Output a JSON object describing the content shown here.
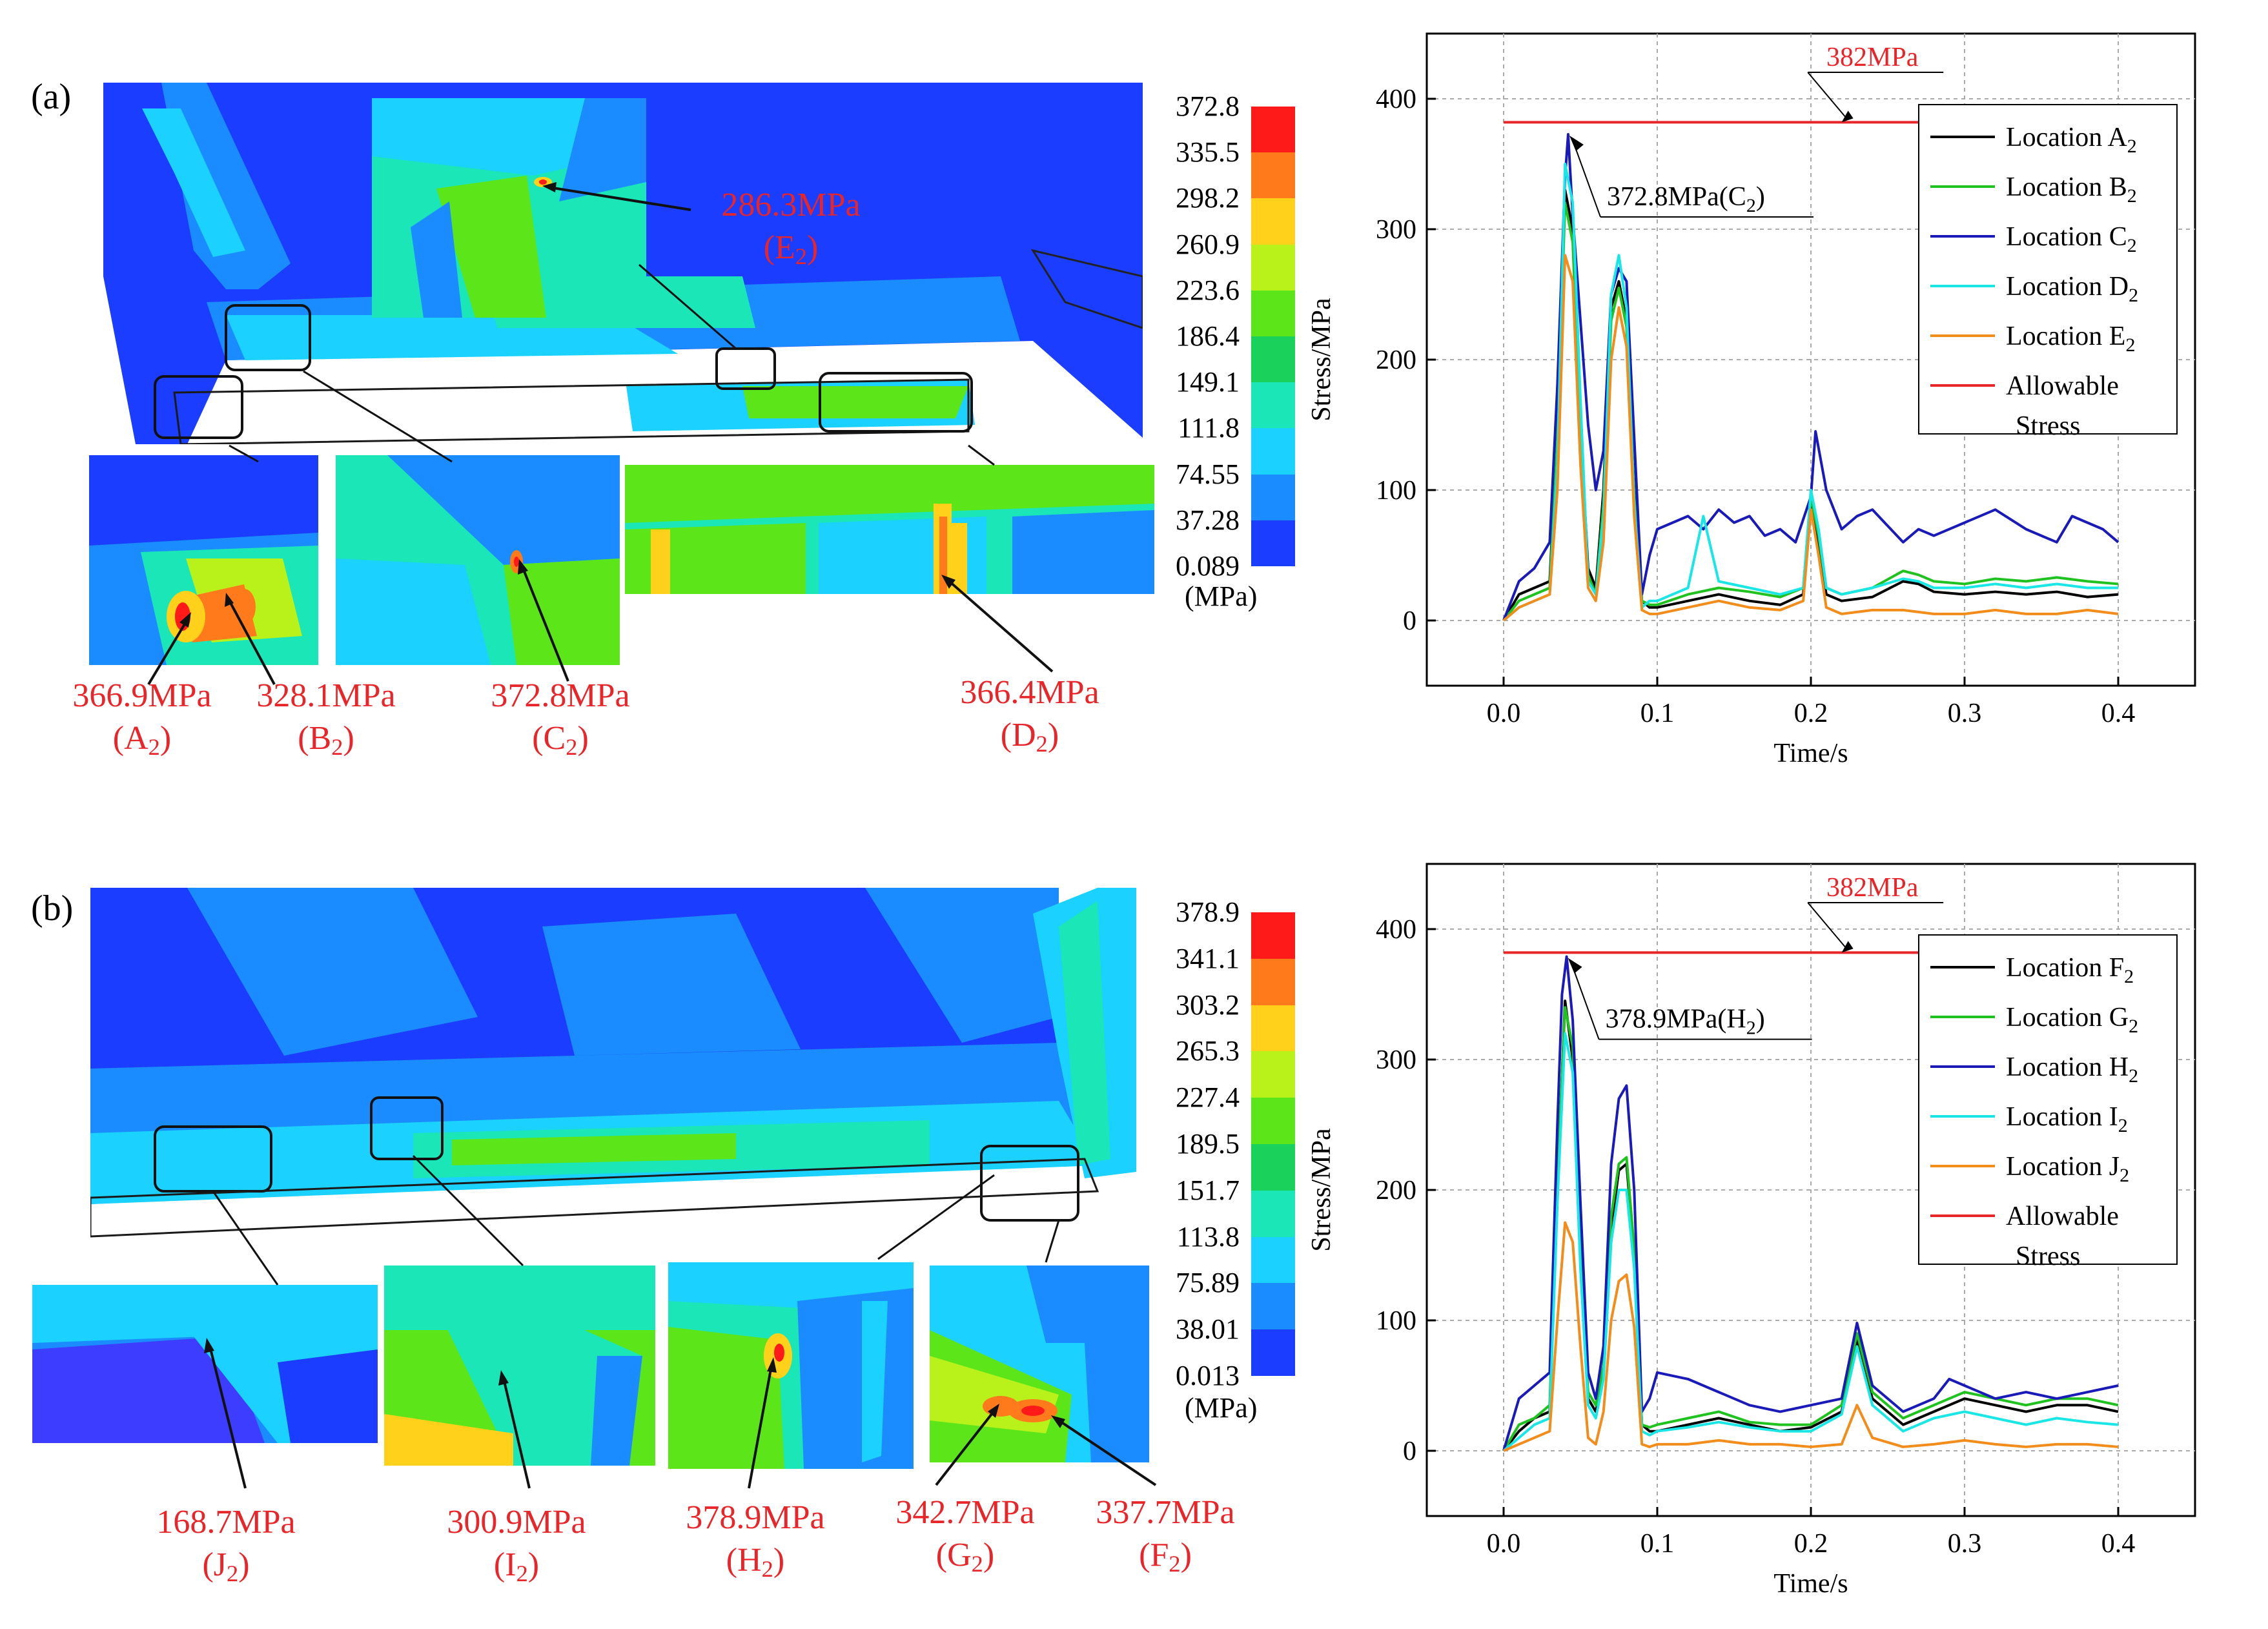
{
  "panels": [
    {
      "id": "a",
      "label": "(a)",
      "colorbar": {
        "ticks": [
          "372.8",
          "335.5",
          "298.2",
          "260.9",
          "223.6",
          "186.4",
          "149.1",
          "111.8",
          "74.55",
          "37.28",
          "0.089"
        ],
        "unit": "(MPa)"
      },
      "annotations": [
        {
          "value": "286.3MPa",
          "loc": "E",
          "sub": "2"
        },
        {
          "value": "366.9MPa",
          "loc": "A",
          "sub": "2"
        },
        {
          "value": "328.1MPa",
          "loc": "B",
          "sub": "2"
        },
        {
          "value": "372.8MPa",
          "loc": "C",
          "sub": "2"
        },
        {
          "value": "366.4MPa",
          "loc": "D",
          "sub": "2"
        }
      ]
    },
    {
      "id": "b",
      "label": "(b)",
      "colorbar": {
        "ticks": [
          "378.9",
          "341.1",
          "303.2",
          "265.3",
          "227.4",
          "189.5",
          "151.7",
          "113.8",
          "75.89",
          "38.01",
          "0.013"
        ],
        "unit": "(MPa)"
      },
      "annotations": [
        {
          "value": "168.7MPa",
          "loc": "J",
          "sub": "2"
        },
        {
          "value": "300.9MPa",
          "loc": "I",
          "sub": "2"
        },
        {
          "value": "378.9MPa",
          "loc": "H",
          "sub": "2"
        },
        {
          "value": "342.7MPa",
          "loc": "G",
          "sub": "2"
        },
        {
          "value": "337.7MPa",
          "loc": "F",
          "sub": "2"
        }
      ]
    }
  ],
  "colorbar_colors": [
    "#ff1a1a",
    "#ff7a1a",
    "#ffd11a",
    "#b8f21a",
    "#5ce61a",
    "#1ad15c",
    "#1ae6b8",
    "#1ad1ff",
    "#1a8cff",
    "#1a3dff"
  ],
  "chart_data": [
    {
      "type": "line",
      "title": "",
      "xlabel": "Time/s",
      "ylabel": "Stress/MPa",
      "xlim": [
        -0.05,
        0.45
      ],
      "ylim": [
        -50,
        450
      ],
      "xticks": [
        "0.0",
        "0.1",
        "0.2",
        "0.3",
        "0.4"
      ],
      "yticks": [
        "0",
        "100",
        "200",
        "300",
        "400"
      ],
      "grid": true,
      "legend_position": "top-right",
      "allowable": {
        "value": 382,
        "label": "382MPa"
      },
      "peak_annotation": "372.8MPa(C",
      "peak_annotation_sub": "2",
      "peak_annotation_close": ")",
      "peak_point": [
        0.042,
        372.8
      ],
      "series": [
        {
          "name": "Location A",
          "sub": "2",
          "color": "#000000",
          "x": [
            0,
            0.01,
            0.02,
            0.03,
            0.035,
            0.04,
            0.045,
            0.05,
            0.055,
            0.06,
            0.065,
            0.07,
            0.075,
            0.08,
            0.085,
            0.09,
            0.095,
            0.1,
            0.12,
            0.14,
            0.16,
            0.18,
            0.195,
            0.2,
            0.205,
            0.21,
            0.22,
            0.24,
            0.26,
            0.27,
            0.28,
            0.3,
            0.32,
            0.34,
            0.36,
            0.38,
            0.4
          ],
          "y": [
            0,
            20,
            25,
            30,
            150,
            330,
            300,
            150,
            40,
            25,
            100,
            240,
            260,
            230,
            100,
            15,
            10,
            10,
            15,
            20,
            15,
            12,
            20,
            90,
            60,
            20,
            15,
            18,
            30,
            28,
            22,
            20,
            22,
            20,
            22,
            18,
            20
          ]
        },
        {
          "name": "Location B",
          "sub": "2",
          "color": "#1fc21f",
          "x": [
            0,
            0.01,
            0.02,
            0.03,
            0.035,
            0.04,
            0.045,
            0.05,
            0.055,
            0.06,
            0.065,
            0.07,
            0.075,
            0.08,
            0.085,
            0.09,
            0.095,
            0.1,
            0.12,
            0.14,
            0.16,
            0.18,
            0.195,
            0.2,
            0.205,
            0.21,
            0.22,
            0.24,
            0.26,
            0.27,
            0.28,
            0.3,
            0.32,
            0.34,
            0.36,
            0.38,
            0.4
          ],
          "y": [
            0,
            15,
            20,
            25,
            140,
            320,
            290,
            140,
            35,
            20,
            90,
            230,
            255,
            225,
            95,
            15,
            12,
            12,
            20,
            25,
            22,
            18,
            25,
            95,
            65,
            25,
            20,
            25,
            38,
            35,
            30,
            28,
            32,
            30,
            33,
            30,
            28
          ]
        },
        {
          "name": "Location C",
          "sub": "2",
          "color": "#1a1ab8",
          "x": [
            0,
            0.01,
            0.02,
            0.03,
            0.035,
            0.04,
            0.042,
            0.045,
            0.05,
            0.055,
            0.06,
            0.065,
            0.07,
            0.075,
            0.08,
            0.085,
            0.09,
            0.095,
            0.1,
            0.11,
            0.12,
            0.13,
            0.14,
            0.15,
            0.16,
            0.17,
            0.18,
            0.19,
            0.2,
            0.203,
            0.21,
            0.22,
            0.23,
            0.24,
            0.26,
            0.27,
            0.28,
            0.3,
            0.32,
            0.34,
            0.36,
            0.37,
            0.38,
            0.39,
            0.4
          ],
          "y": [
            0,
            30,
            40,
            60,
            180,
            340,
            372.8,
            310,
            230,
            150,
            100,
            130,
            250,
            270,
            260,
            140,
            20,
            50,
            70,
            75,
            80,
            70,
            85,
            75,
            80,
            65,
            70,
            60,
            95,
            145,
            100,
            70,
            80,
            85,
            60,
            70,
            65,
            75,
            85,
            70,
            60,
            80,
            75,
            70,
            60
          ]
        },
        {
          "name": "Location D",
          "sub": "2",
          "color": "#1ae6e6",
          "x": [
            0,
            0.01,
            0.02,
            0.03,
            0.035,
            0.04,
            0.045,
            0.05,
            0.055,
            0.06,
            0.065,
            0.07,
            0.075,
            0.08,
            0.085,
            0.09,
            0.095,
            0.1,
            0.12,
            0.13,
            0.14,
            0.16,
            0.18,
            0.195,
            0.2,
            0.205,
            0.21,
            0.22,
            0.24,
            0.26,
            0.27,
            0.28,
            0.3,
            0.32,
            0.34,
            0.36,
            0.38,
            0.4
          ],
          "y": [
            0,
            10,
            15,
            20,
            120,
            350,
            320,
            170,
            30,
            20,
            80,
            250,
            280,
            240,
            90,
            10,
            15,
            15,
            25,
            80,
            30,
            25,
            20,
            25,
            100,
            70,
            25,
            20,
            25,
            32,
            30,
            25,
            25,
            28,
            25,
            28,
            25,
            25
          ]
        },
        {
          "name": "Location E",
          "sub": "2",
          "color": "#f28c1a",
          "x": [
            0,
            0.01,
            0.02,
            0.03,
            0.035,
            0.04,
            0.045,
            0.05,
            0.055,
            0.06,
            0.065,
            0.07,
            0.075,
            0.08,
            0.085,
            0.09,
            0.095,
            0.1,
            0.12,
            0.14,
            0.16,
            0.18,
            0.195,
            0.2,
            0.205,
            0.21,
            0.22,
            0.24,
            0.26,
            0.28,
            0.3,
            0.32,
            0.34,
            0.36,
            0.38,
            0.4
          ],
          "y": [
            0,
            10,
            15,
            20,
            100,
            280,
            260,
            120,
            25,
            15,
            60,
            200,
            240,
            210,
            80,
            8,
            5,
            5,
            10,
            15,
            10,
            8,
            15,
            85,
            50,
            10,
            5,
            8,
            8,
            5,
            5,
            8,
            5,
            5,
            8,
            5
          ]
        },
        {
          "name": "Allowable",
          "name2": "Stress",
          "color": "#e8262a",
          "x": [
            0,
            0.4
          ],
          "y": [
            382,
            382
          ]
        }
      ]
    },
    {
      "type": "line",
      "title": "",
      "xlabel": "Time/s",
      "ylabel": "Stress/MPa",
      "xlim": [
        -0.05,
        0.45
      ],
      "ylim": [
        -50,
        450
      ],
      "xticks": [
        "0.0",
        "0.1",
        "0.2",
        "0.3",
        "0.4"
      ],
      "yticks": [
        "0",
        "100",
        "200",
        "300",
        "400"
      ],
      "grid": true,
      "legend_position": "top-right",
      "allowable": {
        "value": 382,
        "label": "382MPa"
      },
      "peak_annotation": "378.9MPa(H",
      "peak_annotation_sub": "2",
      "peak_annotation_close": ")",
      "peak_point": [
        0.041,
        378.9
      ],
      "series": [
        {
          "name": "Location F",
          "sub": "2",
          "color": "#000000",
          "x": [
            0,
            0.01,
            0.02,
            0.03,
            0.035,
            0.04,
            0.045,
            0.05,
            0.055,
            0.06,
            0.065,
            0.07,
            0.075,
            0.08,
            0.085,
            0.09,
            0.095,
            0.1,
            0.12,
            0.14,
            0.16,
            0.18,
            0.2,
            0.22,
            0.23,
            0.24,
            0.26,
            0.28,
            0.3,
            0.32,
            0.34,
            0.36,
            0.38,
            0.4
          ],
          "y": [
            0,
            15,
            25,
            30,
            200,
            345,
            300,
            150,
            40,
            30,
            60,
            170,
            215,
            220,
            150,
            20,
            15,
            15,
            20,
            25,
            20,
            15,
            18,
            30,
            85,
            40,
            20,
            30,
            40,
            35,
            30,
            35,
            35,
            30
          ]
        },
        {
          "name": "Location G",
          "sub": "2",
          "color": "#1fc21f",
          "x": [
            0,
            0.01,
            0.02,
            0.03,
            0.035,
            0.04,
            0.045,
            0.05,
            0.055,
            0.06,
            0.065,
            0.07,
            0.075,
            0.08,
            0.085,
            0.09,
            0.095,
            0.1,
            0.12,
            0.14,
            0.16,
            0.18,
            0.2,
            0.22,
            0.23,
            0.24,
            0.26,
            0.28,
            0.3,
            0.32,
            0.34,
            0.36,
            0.38,
            0.4
          ],
          "y": [
            0,
            20,
            25,
            35,
            210,
            340,
            310,
            150,
            45,
            35,
            65,
            180,
            220,
            225,
            155,
            20,
            18,
            20,
            25,
            30,
            22,
            20,
            20,
            35,
            90,
            45,
            25,
            35,
            45,
            40,
            35,
            40,
            40,
            35
          ]
        },
        {
          "name": "Location H",
          "sub": "2",
          "color": "#1a1ab8",
          "x": [
            0,
            0.01,
            0.02,
            0.03,
            0.035,
            0.038,
            0.041,
            0.045,
            0.05,
            0.055,
            0.06,
            0.065,
            0.07,
            0.075,
            0.08,
            0.085,
            0.09,
            0.095,
            0.1,
            0.12,
            0.14,
            0.16,
            0.18,
            0.2,
            0.22,
            0.23,
            0.24,
            0.26,
            0.28,
            0.29,
            0.3,
            0.32,
            0.34,
            0.36,
            0.38,
            0.4
          ],
          "y": [
            0,
            40,
            50,
            60,
            250,
            350,
            378.9,
            330,
            190,
            60,
            40,
            80,
            220,
            270,
            280,
            200,
            30,
            40,
            60,
            55,
            45,
            35,
            30,
            35,
            40,
            98,
            50,
            30,
            40,
            55,
            50,
            40,
            45,
            40,
            45,
            50
          ]
        },
        {
          "name": "Location I",
          "sub": "2",
          "color": "#1ae6e6",
          "x": [
            0,
            0.01,
            0.02,
            0.03,
            0.035,
            0.04,
            0.045,
            0.05,
            0.055,
            0.06,
            0.065,
            0.07,
            0.075,
            0.08,
            0.085,
            0.09,
            0.095,
            0.1,
            0.12,
            0.14,
            0.16,
            0.18,
            0.2,
            0.22,
            0.23,
            0.24,
            0.26,
            0.28,
            0.3,
            0.32,
            0.34,
            0.36,
            0.38,
            0.4
          ],
          "y": [
            0,
            10,
            20,
            25,
            190,
            320,
            290,
            140,
            35,
            25,
            55,
            160,
            200,
            200,
            140,
            15,
            12,
            15,
            18,
            22,
            18,
            15,
            15,
            28,
            80,
            35,
            15,
            25,
            30,
            25,
            20,
            25,
            22,
            20
          ]
        },
        {
          "name": "Location J",
          "sub": "2",
          "color": "#f28c1a",
          "x": [
            0,
            0.01,
            0.02,
            0.03,
            0.035,
            0.04,
            0.045,
            0.05,
            0.055,
            0.06,
            0.065,
            0.07,
            0.075,
            0.08,
            0.085,
            0.09,
            0.095,
            0.1,
            0.12,
            0.14,
            0.16,
            0.18,
            0.2,
            0.22,
            0.23,
            0.24,
            0.26,
            0.28,
            0.3,
            0.32,
            0.34,
            0.36,
            0.38,
            0.4
          ],
          "y": [
            0,
            5,
            10,
            15,
            100,
            175,
            160,
            80,
            10,
            5,
            30,
            100,
            130,
            135,
            95,
            5,
            3,
            5,
            5,
            8,
            5,
            5,
            3,
            5,
            35,
            10,
            3,
            5,
            8,
            5,
            3,
            5,
            5,
            3
          ]
        },
        {
          "name": "Allowable",
          "name2": "Stress",
          "color": "#e8262a",
          "x": [
            0,
            0.4
          ],
          "y": [
            382,
            382
          ]
        }
      ]
    }
  ]
}
